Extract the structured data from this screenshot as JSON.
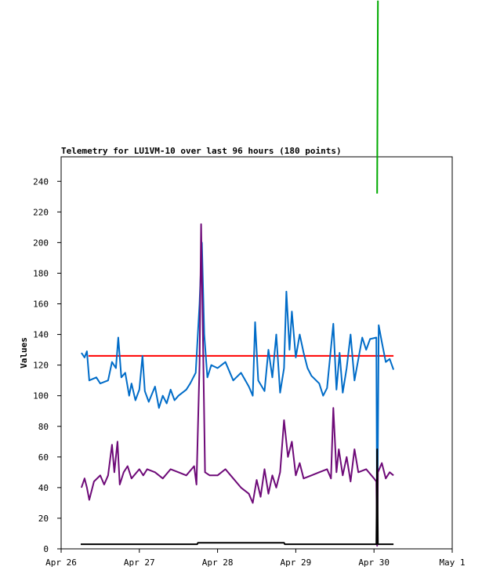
{
  "chart_data": {
    "type": "line",
    "title": "Telemetry for LU1VM-10 over last 96 hours (180 points)",
    "y_label": "Values",
    "xlim": [
      0,
      5
    ],
    "ylim": [
      0,
      256
    ],
    "xticks": [
      {
        "value": 0,
        "label": "Apr 26"
      },
      {
        "value": 1,
        "label": "Apr 27"
      },
      {
        "value": 2,
        "label": "Apr 28"
      },
      {
        "value": 3,
        "label": "Apr 29"
      },
      {
        "value": 4,
        "label": "Apr 30"
      },
      {
        "value": 5,
        "label": "May 1"
      }
    ],
    "yticks": [
      0,
      20,
      40,
      60,
      80,
      100,
      120,
      140,
      160,
      180,
      200,
      220,
      240
    ],
    "grid": false,
    "series": [
      {
        "color": "#ff0000",
        "x": [
          0.35,
          4.25
        ],
        "values": [
          126,
          126
        ]
      },
      {
        "color": "#006cc8",
        "x": [
          0.26,
          0.3,
          0.33,
          0.36,
          0.45,
          0.5,
          0.6,
          0.65,
          0.7,
          0.73,
          0.77,
          0.82,
          0.87,
          0.9,
          0.95,
          1.0,
          1.04,
          1.07,
          1.12,
          1.2,
          1.25,
          1.3,
          1.35,
          1.4,
          1.45,
          1.5,
          1.6,
          1.65,
          1.72,
          1.77,
          1.8,
          1.83,
          1.87,
          1.92,
          2.0,
          2.1,
          2.2,
          2.3,
          2.4,
          2.45,
          2.48,
          2.52,
          2.6,
          2.65,
          2.7,
          2.75,
          2.8,
          2.85,
          2.88,
          2.92,
          2.95,
          3.0,
          3.05,
          3.1,
          3.15,
          3.2,
          3.3,
          3.35,
          3.4,
          3.48,
          3.52,
          3.56,
          3.6,
          3.65,
          3.7,
          3.75,
          3.85,
          3.9,
          3.95,
          4.03,
          4.04,
          4.05,
          4.06,
          4.1,
          4.15,
          4.2,
          4.25
        ],
        "values": [
          128,
          125,
          129,
          110,
          112,
          108,
          110,
          122,
          118,
          138,
          112,
          115,
          100,
          108,
          97,
          104,
          126,
          103,
          96,
          106,
          92,
          100,
          95,
          104,
          97,
          100,
          104,
          108,
          115,
          160,
          200,
          140,
          112,
          120,
          118,
          122,
          110,
          115,
          106,
          100,
          148,
          110,
          103,
          130,
          112,
          140,
          102,
          118,
          168,
          130,
          155,
          125,
          140,
          128,
          118,
          113,
          108,
          100,
          105,
          147,
          104,
          128,
          102,
          118,
          140,
          110,
          138,
          130,
          137,
          138,
          5,
          72,
          146,
          135,
          122,
          124,
          117
        ]
      },
      {
        "color": "#6e0a78",
        "x": [
          0.26,
          0.3,
          0.33,
          0.36,
          0.42,
          0.5,
          0.55,
          0.6,
          0.65,
          0.68,
          0.72,
          0.75,
          0.8,
          0.85,
          0.9,
          1.0,
          1.05,
          1.1,
          1.2,
          1.3,
          1.4,
          1.5,
          1.6,
          1.7,
          1.73,
          1.77,
          1.79,
          1.81,
          1.84,
          1.9,
          2.0,
          2.1,
          2.2,
          2.3,
          2.4,
          2.45,
          2.5,
          2.55,
          2.6,
          2.65,
          2.7,
          2.75,
          2.8,
          2.85,
          2.9,
          2.95,
          3.0,
          3.05,
          3.1,
          3.2,
          3.3,
          3.4,
          3.45,
          3.48,
          3.52,
          3.55,
          3.6,
          3.65,
          3.7,
          3.75,
          3.8,
          3.9,
          4.0,
          4.03,
          4.04,
          4.05,
          4.1,
          4.15,
          4.2,
          4.25
        ],
        "values": [
          40,
          46,
          40,
          32,
          44,
          48,
          42,
          48,
          68,
          50,
          70,
          42,
          50,
          54,
          46,
          52,
          48,
          52,
          50,
          46,
          52,
          50,
          48,
          54,
          42,
          120,
          212,
          150,
          50,
          48,
          48,
          52,
          46,
          40,
          36,
          30,
          45,
          34,
          52,
          36,
          48,
          40,
          50,
          84,
          60,
          70,
          48,
          56,
          46,
          48,
          50,
          52,
          46,
          92,
          50,
          65,
          48,
          60,
          44,
          65,
          50,
          52,
          46,
          44,
          2,
          50,
          56,
          46,
          50,
          48
        ]
      },
      {
        "color": "#000000",
        "x": [
          0.25,
          1.74,
          1.75,
          2.85,
          2.86,
          4.03,
          4.04,
          4.05,
          4.25
        ],
        "values": [
          3,
          3,
          4,
          4,
          3,
          3,
          65,
          3,
          3
        ]
      },
      {
        "color": "#00aa00",
        "x": [
          4.04,
          4.05
        ],
        "values": [
          232,
          358
        ]
      }
    ]
  }
}
